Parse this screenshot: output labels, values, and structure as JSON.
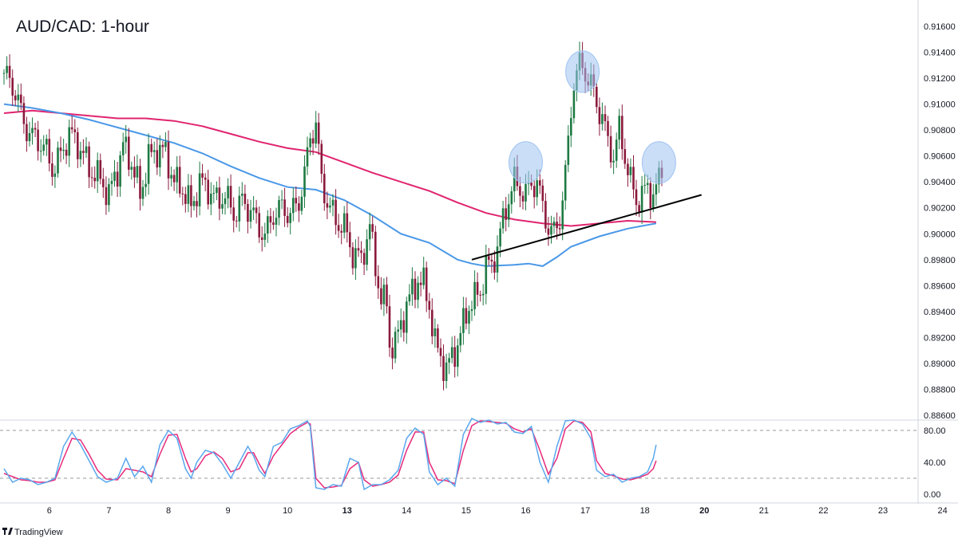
{
  "title": "AUD/CAD: 1-hour",
  "brand": "TradingView",
  "colors": {
    "up": "#1e7a43",
    "down": "#8b1a3c",
    "ma_fast": "#4a98e8",
    "ma_slow": "#e0246f",
    "stoch_k": "#5aa7ee",
    "stoch_d": "#e62b7c",
    "trendline": "#000000",
    "marker": "#9ec3f0",
    "grid_dash": "#9a9a9a",
    "axis_border": "#d1d4dc"
  },
  "chart_data": {
    "type": "candlestick",
    "price_axis": {
      "min": 0.886,
      "max": 0.916,
      "ticks": [
        "0.91600",
        "0.91400",
        "0.91200",
        "0.91000",
        "0.90800",
        "0.90600",
        "0.90400",
        "0.90200",
        "0.90000",
        "0.89800",
        "0.89600",
        "0.89400",
        "0.89200",
        "0.89000",
        "0.88800",
        "0.88600"
      ]
    },
    "x_axis": {
      "candle_range": [
        0,
        232
      ],
      "labels": [
        {
          "text": "6",
          "bar": 16,
          "bold": false
        },
        {
          "text": "7",
          "bar": 37,
          "bold": false
        },
        {
          "text": "8",
          "bar": 58,
          "bold": false
        },
        {
          "text": "9",
          "bar": 79,
          "bold": false
        },
        {
          "text": "10",
          "bar": 100,
          "bold": false
        },
        {
          "text": "13",
          "bar": 121,
          "bold": true
        },
        {
          "text": "14",
          "bar": 142,
          "bold": false
        },
        {
          "text": "15",
          "bar": 163,
          "bold": false
        },
        {
          "text": "16",
          "bar": 184,
          "bold": false
        },
        {
          "text": "17",
          "bar": 205,
          "bold": false
        },
        {
          "text": "18",
          "bar": 226,
          "bold": false
        },
        {
          "text": "20",
          "bar": 247,
          "bold": true
        },
        {
          "text": "21",
          "bar": 268,
          "bold": false
        },
        {
          "text": "22",
          "bar": 289,
          "bold": false
        },
        {
          "text": "23",
          "bar": 310,
          "bold": false
        },
        {
          "text": "24",
          "bar": 331,
          "bold": false
        }
      ]
    },
    "close_path": [
      [
        0,
        0.9124
      ],
      [
        4,
        0.911
      ],
      [
        7,
        0.9085
      ],
      [
        10,
        0.9075
      ],
      [
        14,
        0.9068
      ],
      [
        17,
        0.905
      ],
      [
        20,
        0.906
      ],
      [
        23,
        0.9078
      ],
      [
        27,
        0.9066
      ],
      [
        30,
        0.905
      ],
      [
        34,
        0.9042
      ],
      [
        37,
        0.903
      ],
      [
        40,
        0.905
      ],
      [
        42,
        0.9068
      ],
      [
        45,
        0.9055
      ],
      [
        48,
        0.903
      ],
      [
        51,
        0.9058
      ],
      [
        54,
        0.9065
      ],
      [
        57,
        0.9062
      ],
      [
        60,
        0.904
      ],
      [
        63,
        0.9035
      ],
      [
        66,
        0.902
      ],
      [
        69,
        0.904
      ],
      [
        72,
        0.9035
      ],
      [
        75,
        0.9025
      ],
      [
        78,
        0.903
      ],
      [
        81,
        0.9015
      ],
      [
        84,
        0.9025
      ],
      [
        87,
        0.9018
      ],
      [
        90,
        0.9005
      ],
      [
        92,
        0.8998
      ],
      [
        95,
        0.9015
      ],
      [
        98,
        0.902
      ],
      [
        101,
        0.9015
      ],
      [
        104,
        0.9025
      ],
      [
        106,
        0.9045
      ],
      [
        108,
        0.9075
      ],
      [
        110,
        0.9085
      ],
      [
        112,
        0.904
      ],
      [
        114,
        0.9025
      ],
      [
        117,
        0.901
      ],
      [
        120,
        0.9005
      ],
      [
        123,
        0.8985
      ],
      [
        126,
        0.898
      ],
      [
        129,
        0.9005
      ],
      [
        131,
        0.8975
      ],
      [
        133,
        0.895
      ],
      [
        135,
        0.8945
      ],
      [
        136,
        0.8915
      ],
      [
        138,
        0.8915
      ],
      [
        140,
        0.893
      ],
      [
        142,
        0.8945
      ],
      [
        144,
        0.8955
      ],
      [
        146,
        0.8965
      ],
      [
        148,
        0.896
      ],
      [
        150,
        0.8945
      ],
      [
        152,
        0.8915
      ],
      [
        154,
        0.8905
      ],
      [
        156,
        0.8895
      ],
      [
        158,
        0.8905
      ],
      [
        160,
        0.8915
      ],
      [
        162,
        0.893
      ],
      [
        164,
        0.8945
      ],
      [
        166,
        0.895
      ],
      [
        168,
        0.8955
      ],
      [
        170,
        0.8975
      ],
      [
        172,
        0.8975
      ],
      [
        174,
        0.899
      ],
      [
        176,
        0.901
      ],
      [
        178,
        0.9028
      ],
      [
        180,
        0.904
      ],
      [
        182,
        0.9035
      ],
      [
        184,
        0.903
      ],
      [
        186,
        0.9038
      ],
      [
        188,
        0.904
      ],
      [
        190,
        0.902
      ],
      [
        192,
        0.9005
      ],
      [
        194,
        0.9
      ],
      [
        196,
        0.9012
      ],
      [
        198,
        0.9045
      ],
      [
        200,
        0.9095
      ],
      [
        201,
        0.9118
      ],
      [
        203,
        0.913
      ],
      [
        205,
        0.9125
      ],
      [
        207,
        0.9115
      ],
      [
        209,
        0.91
      ],
      [
        211,
        0.909
      ],
      [
        213,
        0.907
      ],
      [
        215,
        0.906
      ],
      [
        217,
        0.908
      ],
      [
        219,
        0.906
      ],
      [
        221,
        0.904
      ],
      [
        223,
        0.9025
      ],
      [
        225,
        0.903
      ],
      [
        227,
        0.9035
      ],
      [
        229,
        0.903
      ],
      [
        231,
        0.904
      ],
      [
        232,
        0.9052
      ]
    ],
    "ma_fast_path": [
      [
        0,
        0.91
      ],
      [
        10,
        0.9097
      ],
      [
        20,
        0.9093
      ],
      [
        30,
        0.9088
      ],
      [
        40,
        0.9082
      ],
      [
        50,
        0.9076
      ],
      [
        60,
        0.907
      ],
      [
        70,
        0.9062
      ],
      [
        80,
        0.9052
      ],
      [
        90,
        0.9043
      ],
      [
        100,
        0.9036
      ],
      [
        110,
        0.9034
      ],
      [
        120,
        0.9026
      ],
      [
        130,
        0.9014
      ],
      [
        140,
        0.9
      ],
      [
        150,
        0.8993
      ],
      [
        160,
        0.898
      ],
      [
        165,
        0.8977
      ],
      [
        170,
        0.8975
      ],
      [
        180,
        0.8976
      ],
      [
        185,
        0.8977
      ],
      [
        190,
        0.8975
      ],
      [
        195,
        0.8982
      ],
      [
        200,
        0.899
      ],
      [
        210,
        0.8998
      ],
      [
        220,
        0.9004
      ],
      [
        225,
        0.9006
      ],
      [
        230,
        0.9008
      ]
    ],
    "ma_slow_path": [
      [
        0,
        0.9093
      ],
      [
        10,
        0.9095
      ],
      [
        20,
        0.9093
      ],
      [
        30,
        0.9091
      ],
      [
        40,
        0.9089
      ],
      [
        50,
        0.9089
      ],
      [
        60,
        0.9087
      ],
      [
        70,
        0.9083
      ],
      [
        80,
        0.9077
      ],
      [
        90,
        0.9071
      ],
      [
        100,
        0.9066
      ],
      [
        110,
        0.9063
      ],
      [
        120,
        0.9055
      ],
      [
        130,
        0.9047
      ],
      [
        140,
        0.904
      ],
      [
        150,
        0.9033
      ],
      [
        160,
        0.9024
      ],
      [
        170,
        0.9016
      ],
      [
        180,
        0.9011
      ],
      [
        190,
        0.9008
      ],
      [
        200,
        0.9006
      ],
      [
        210,
        0.9008
      ],
      [
        220,
        0.901
      ],
      [
        230,
        0.9009
      ]
    ],
    "trendline": [
      [
        165,
        0.898
      ],
      [
        246,
        0.903
      ]
    ],
    "markers": [
      {
        "bar": 184,
        "price": 0.9055
      },
      {
        "bar": 204,
        "price": 0.9125
      },
      {
        "bar": 231,
        "price": 0.9055
      }
    ],
    "stochastic": {
      "range": [
        0,
        100
      ],
      "levels": [
        80,
        20
      ],
      "ticks": [
        "80.00",
        "40.00",
        "0.00"
      ],
      "k_path": [
        [
          0,
          32
        ],
        [
          3,
          15
        ],
        [
          6,
          20
        ],
        [
          9,
          18
        ],
        [
          12,
          12
        ],
        [
          15,
          15
        ],
        [
          18,
          20
        ],
        [
          21,
          60
        ],
        [
          24,
          78
        ],
        [
          27,
          62
        ],
        [
          30,
          42
        ],
        [
          33,
          22
        ],
        [
          36,
          15
        ],
        [
          40,
          20
        ],
        [
          43,
          45
        ],
        [
          46,
          22
        ],
        [
          49,
          35
        ],
        [
          52,
          15
        ],
        [
          55,
          62
        ],
        [
          58,
          80
        ],
        [
          61,
          70
        ],
        [
          64,
          32
        ],
        [
          66,
          20
        ],
        [
          68,
          40
        ],
        [
          71,
          55
        ],
        [
          74,
          52
        ],
        [
          77,
          38
        ],
        [
          80,
          20
        ],
        [
          83,
          40
        ],
        [
          86,
          60
        ],
        [
          88,
          48
        ],
        [
          90,
          30
        ],
        [
          92,
          22
        ],
        [
          95,
          60
        ],
        [
          98,
          65
        ],
        [
          101,
          82
        ],
        [
          104,
          86
        ],
        [
          107,
          92
        ],
        [
          108,
          85
        ],
        [
          110,
          8
        ],
        [
          113,
          6
        ],
        [
          116,
          12
        ],
        [
          119,
          10
        ],
        [
          122,
          45
        ],
        [
          125,
          40
        ],
        [
          127,
          6
        ],
        [
          130,
          12
        ],
        [
          133,
          12
        ],
        [
          136,
          18
        ],
        [
          139,
          30
        ],
        [
          142,
          70
        ],
        [
          145,
          83
        ],
        [
          148,
          75
        ],
        [
          150,
          28
        ],
        [
          153,
          12
        ],
        [
          156,
          20
        ],
        [
          159,
          10
        ],
        [
          162,
          75
        ],
        [
          165,
          95
        ],
        [
          168,
          90
        ],
        [
          171,
          93
        ],
        [
          174,
          88
        ],
        [
          177,
          90
        ],
        [
          180,
          78
        ],
        [
          183,
          76
        ],
        [
          186,
          85
        ],
        [
          189,
          40
        ],
        [
          192,
          15
        ],
        [
          195,
          60
        ],
        [
          198,
          92
        ],
        [
          201,
          93
        ],
        [
          204,
          88
        ],
        [
          207,
          70
        ],
        [
          209,
          30
        ],
        [
          212,
          22
        ],
        [
          215,
          25
        ],
        [
          218,
          15
        ],
        [
          221,
          20
        ],
        [
          224,
          22
        ],
        [
          227,
          28
        ],
        [
          229,
          45
        ],
        [
          230,
          62
        ]
      ],
      "d_path": [
        [
          0,
          26
        ],
        [
          3,
          22
        ],
        [
          6,
          18
        ],
        [
          9,
          17
        ],
        [
          12,
          15
        ],
        [
          15,
          15
        ],
        [
          18,
          18
        ],
        [
          21,
          45
        ],
        [
          24,
          70
        ],
        [
          27,
          68
        ],
        [
          30,
          50
        ],
        [
          33,
          30
        ],
        [
          36,
          19
        ],
        [
          40,
          18
        ],
        [
          43,
          32
        ],
        [
          46,
          30
        ],
        [
          49,
          28
        ],
        [
          52,
          22
        ],
        [
          55,
          50
        ],
        [
          58,
          74
        ],
        [
          61,
          75
        ],
        [
          64,
          45
        ],
        [
          66,
          28
        ],
        [
          68,
          32
        ],
        [
          71,
          48
        ],
        [
          74,
          53
        ],
        [
          77,
          45
        ],
        [
          80,
          28
        ],
        [
          83,
          32
        ],
        [
          86,
          52
        ],
        [
          88,
          52
        ],
        [
          90,
          38
        ],
        [
          92,
          26
        ],
        [
          95,
          48
        ],
        [
          98,
          62
        ],
        [
          101,
          76
        ],
        [
          104,
          84
        ],
        [
          107,
          90
        ],
        [
          108,
          88
        ],
        [
          110,
          20
        ],
        [
          113,
          8
        ],
        [
          116,
          9
        ],
        [
          119,
          11
        ],
        [
          122,
          32
        ],
        [
          125,
          40
        ],
        [
          127,
          18
        ],
        [
          130,
          10
        ],
        [
          133,
          12
        ],
        [
          136,
          15
        ],
        [
          139,
          24
        ],
        [
          142,
          55
        ],
        [
          145,
          78
        ],
        [
          148,
          78
        ],
        [
          150,
          40
        ],
        [
          153,
          18
        ],
        [
          156,
          17
        ],
        [
          159,
          13
        ],
        [
          162,
          55
        ],
        [
          165,
          86
        ],
        [
          168,
          92
        ],
        [
          171,
          91
        ],
        [
          174,
          90
        ],
        [
          177,
          89
        ],
        [
          180,
          82
        ],
        [
          183,
          78
        ],
        [
          186,
          82
        ],
        [
          189,
          55
        ],
        [
          192,
          25
        ],
        [
          195,
          45
        ],
        [
          198,
          82
        ],
        [
          201,
          92
        ],
        [
          204,
          90
        ],
        [
          207,
          78
        ],
        [
          209,
          42
        ],
        [
          212,
          26
        ],
        [
          215,
          23
        ],
        [
          218,
          19
        ],
        [
          221,
          18
        ],
        [
          224,
          21
        ],
        [
          227,
          25
        ],
        [
          229,
          32
        ],
        [
          230,
          42
        ]
      ]
    }
  }
}
